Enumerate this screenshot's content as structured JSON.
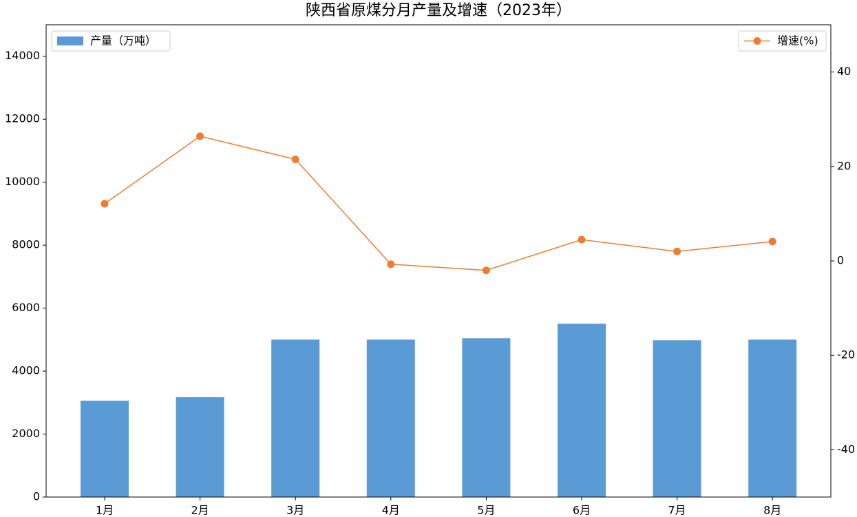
{
  "chart_data": {
    "type": "bar-line",
    "title": "陕西省原煤分月产量及增速（2023年）",
    "categories": [
      "1月",
      "2月",
      "3月",
      "4月",
      "5月",
      "6月",
      "7月",
      "8月"
    ],
    "series": [
      {
        "name": "产量（万吨）",
        "type": "bar",
        "color": "#5b9bd5",
        "axis": "y",
        "values": [
          3060,
          3170,
          5000,
          5000,
          5045,
          5505,
          4980,
          5000
        ]
      },
      {
        "name": "增速(%)",
        "type": "line",
        "color": "#ed7d31",
        "axis": "y2",
        "values": [
          12.1,
          26.4,
          21.5,
          -0.7,
          -2.0,
          4.5,
          2.0,
          4.1
        ]
      }
    ],
    "ylim": [
      0,
      15000
    ],
    "yticks": [
      0,
      2000,
      4000,
      6000,
      8000,
      10000,
      12000,
      14000
    ],
    "y2lim": [
      -50,
      50
    ],
    "y2ticks": [
      -40,
      -20,
      0,
      20,
      40
    ]
  }
}
